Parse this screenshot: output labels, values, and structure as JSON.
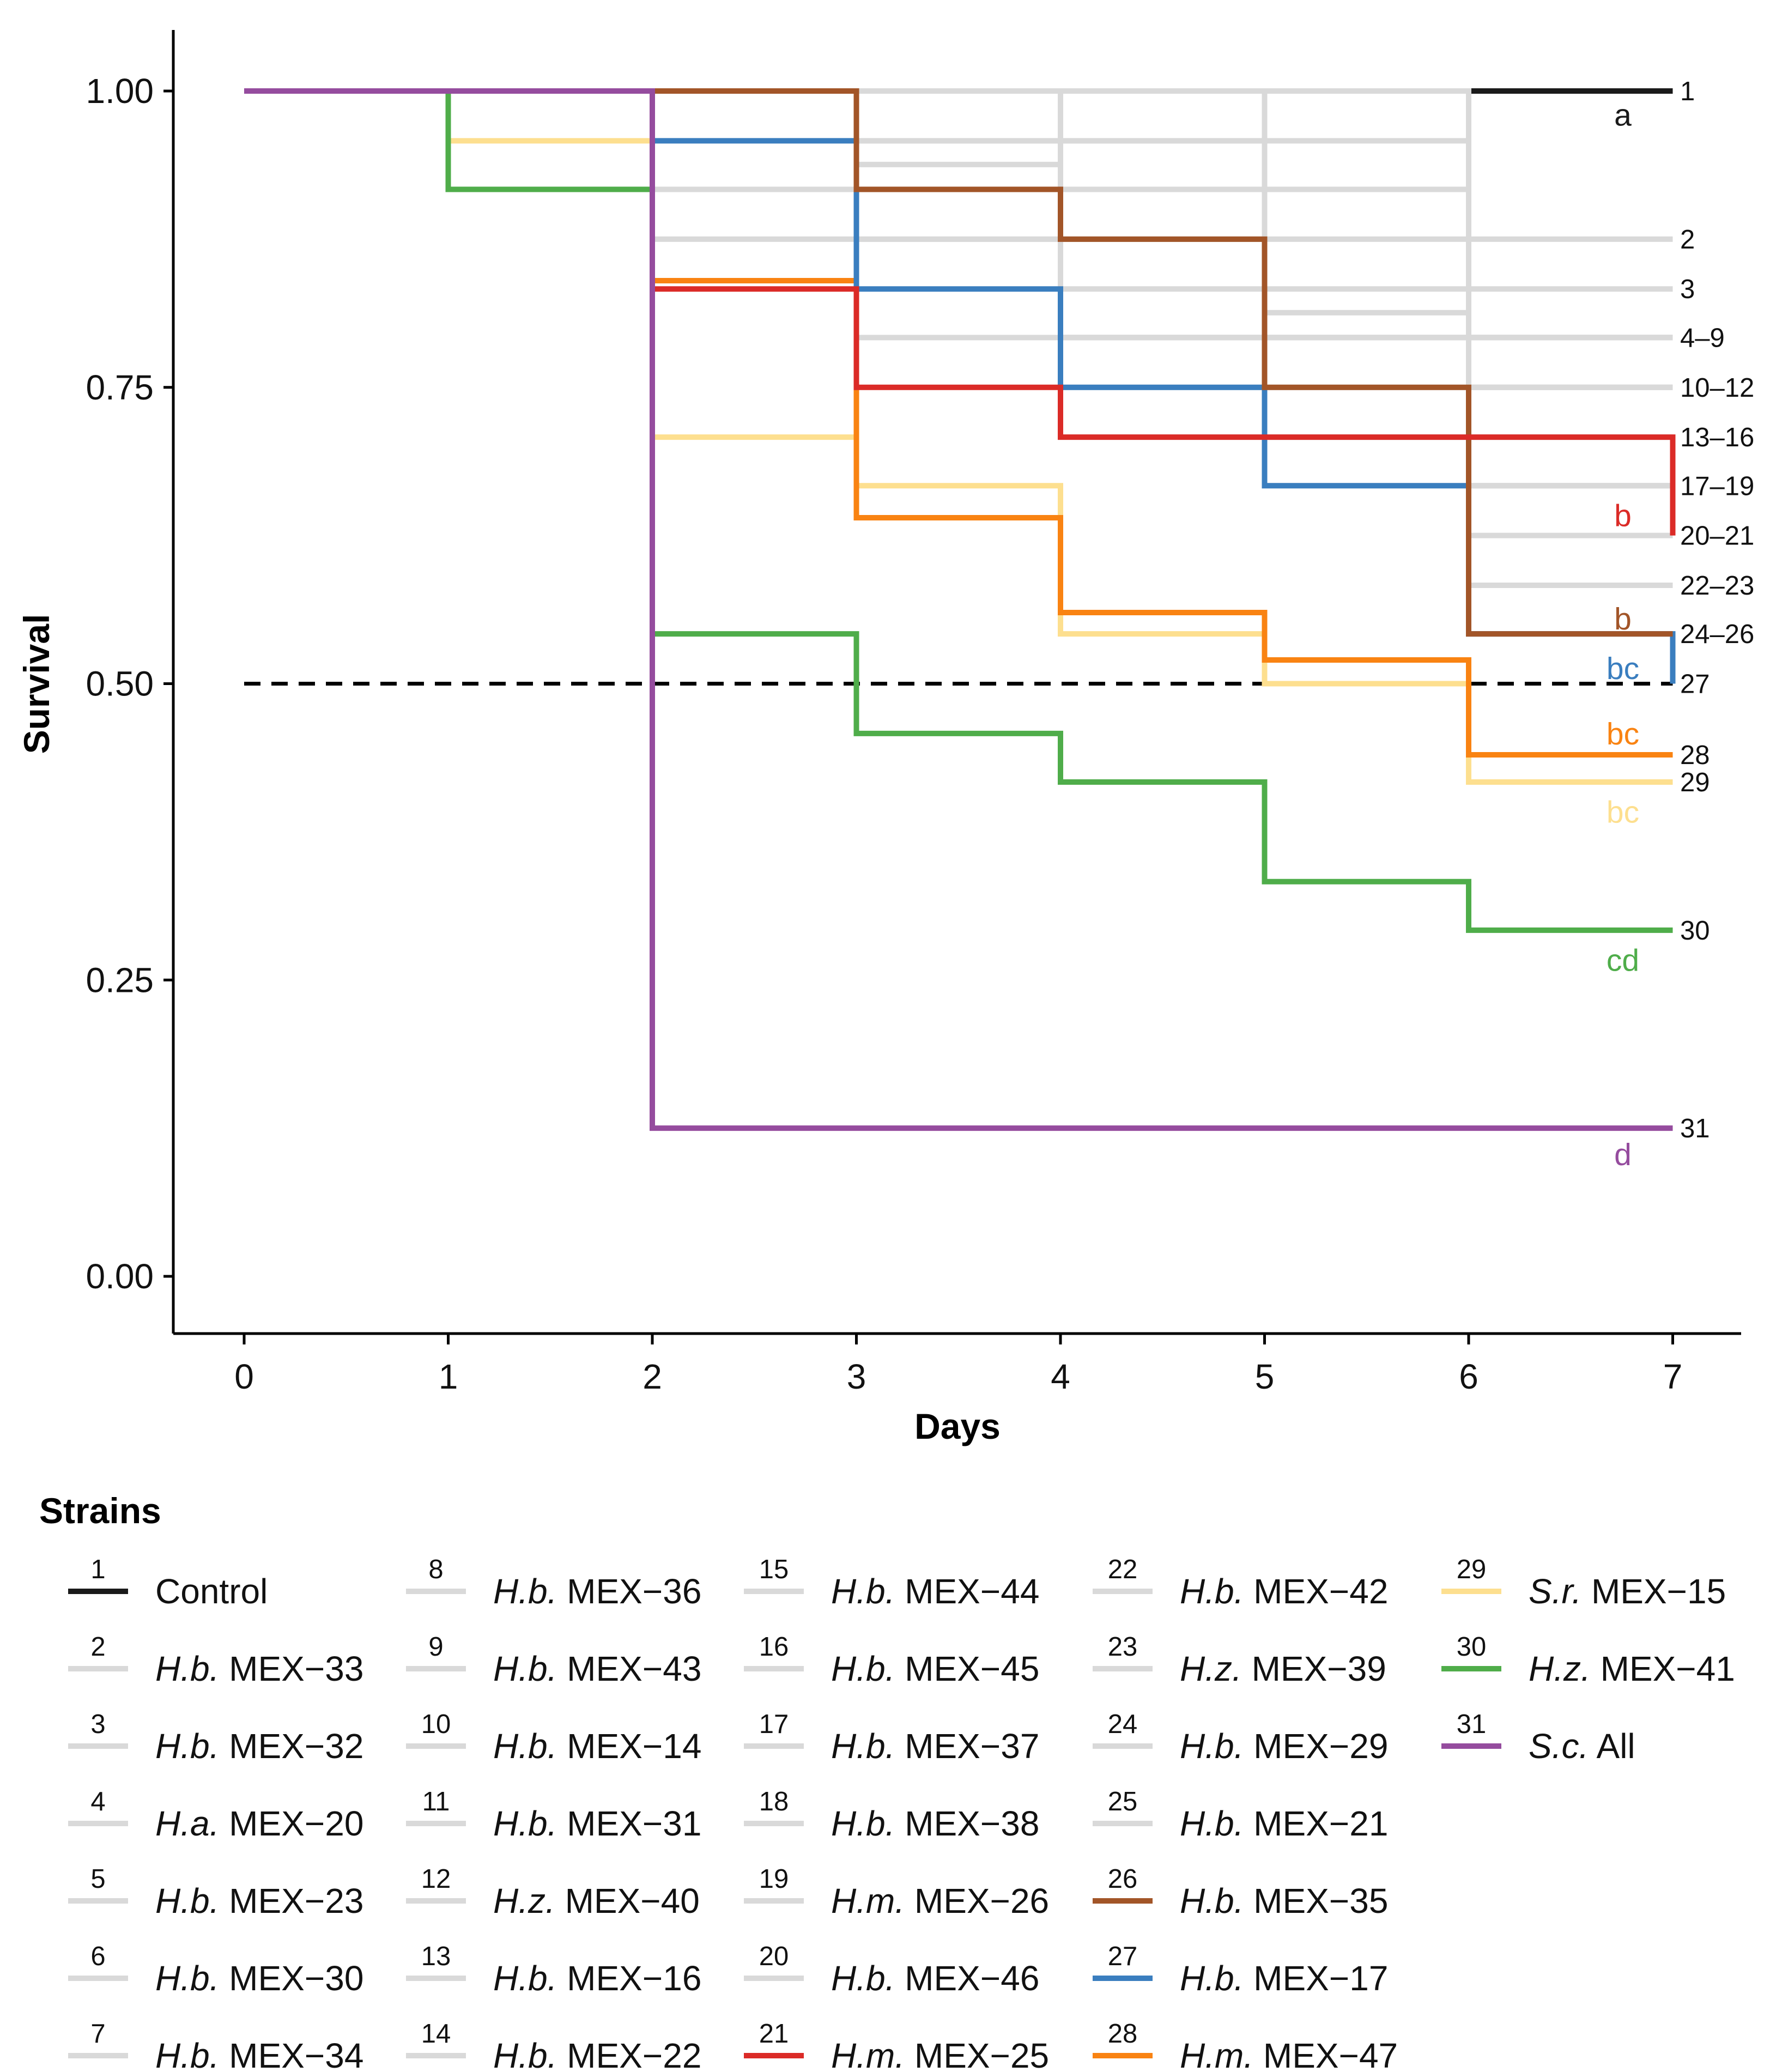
{
  "chart_data": {
    "type": "line",
    "title": "",
    "xlabel": "Days",
    "ylabel": "Survival",
    "xlim": [
      0,
      7
    ],
    "ylim": [
      0,
      1
    ],
    "x_ticks": [
      "0",
      "1",
      "2",
      "3",
      "4",
      "5",
      "6",
      "7"
    ],
    "y_ticks": [
      "0.00",
      "0.25",
      "0.50",
      "0.75",
      "1.00"
    ],
    "grid": false,
    "reference_line": {
      "y": 0.5,
      "style": "dashed"
    },
    "legend": {
      "title": "Strains",
      "placement": "bottom"
    },
    "series": [
      {
        "id": "1",
        "species": "",
        "strain": "Control",
        "color": "#1a1a1a",
        "steps": [
          [
            0,
            1.0
          ]
        ]
      },
      {
        "id": "2",
        "species": "H.b.",
        "strain": "MEX−33",
        "color": "#d9d9d9",
        "steps": [
          [
            0,
            1.0
          ],
          [
            6,
            0.875
          ]
        ]
      },
      {
        "id": "3",
        "species": "H.b.",
        "strain": "MEX−32",
        "color": "#d9d9d9",
        "steps": [
          [
            0,
            1.0
          ],
          [
            5,
            0.958
          ],
          [
            6,
            0.833
          ]
        ]
      },
      {
        "id": "4",
        "species": "H.a.",
        "strain": "MEX−20",
        "color": "#d9d9d9",
        "steps": [
          [
            0,
            1.0
          ],
          [
            2,
            0.875
          ],
          [
            6,
            0.792
          ]
        ]
      },
      {
        "id": "5",
        "species": "H.b.",
        "strain": "MEX−23",
        "color": "#d9d9d9",
        "steps": [
          [
            0,
            1.0
          ],
          [
            3,
            0.958
          ],
          [
            4,
            0.792
          ]
        ]
      },
      {
        "id": "6",
        "species": "H.b.",
        "strain": "MEX−30",
        "color": "#d9d9d9",
        "steps": [
          [
            0,
            1.0
          ],
          [
            3,
            0.938
          ],
          [
            4,
            0.792
          ]
        ]
      },
      {
        "id": "7",
        "species": "H.b.",
        "strain": "MEX−34",
        "color": "#d9d9d9",
        "steps": [
          [
            0,
            1.0
          ],
          [
            3,
            0.917
          ],
          [
            5,
            0.813
          ],
          [
            6,
            0.792
          ]
        ]
      },
      {
        "id": "8",
        "species": "H.b.",
        "strain": "MEX−36",
        "color": "#d9d9d9",
        "steps": [
          [
            0,
            1.0
          ],
          [
            2,
            0.917
          ],
          [
            3,
            0.792
          ]
        ]
      },
      {
        "id": "9",
        "species": "H.b.",
        "strain": "MEX−43",
        "color": "#d9d9d9",
        "steps": [
          [
            0,
            1.0
          ],
          [
            2,
            0.917
          ],
          [
            4,
            0.792
          ]
        ]
      },
      {
        "id": "10",
        "species": "H.b.",
        "strain": "MEX−14",
        "color": "#d9d9d9",
        "steps": [
          [
            0,
            1.0
          ],
          [
            2,
            0.917
          ],
          [
            6,
            0.75
          ]
        ]
      },
      {
        "id": "11",
        "species": "H.b.",
        "strain": "MEX−31",
        "color": "#d9d9d9",
        "steps": [
          [
            0,
            1.0
          ],
          [
            4,
            0.917
          ],
          [
            6,
            0.75
          ]
        ]
      },
      {
        "id": "12",
        "species": "H.z.",
        "strain": "MEX−40",
        "color": "#d9d9d9",
        "steps": [
          [
            0,
            1.0
          ],
          [
            4,
            0.958
          ],
          [
            5,
            0.75
          ]
        ]
      },
      {
        "id": "13",
        "species": "H.b.",
        "strain": "MEX−16",
        "color": "#d9d9d9",
        "steps": [
          [
            0,
            1.0
          ],
          [
            2,
            0.958
          ],
          [
            5,
            0.708
          ]
        ]
      },
      {
        "id": "14",
        "species": "H.b.",
        "strain": "MEX−22",
        "color": "#d9d9d9",
        "steps": [
          [
            0,
            1.0
          ],
          [
            3,
            0.875
          ],
          [
            5,
            0.708
          ]
        ]
      },
      {
        "id": "15",
        "species": "H.b.",
        "strain": "MEX−44",
        "color": "#d9d9d9",
        "steps": [
          [
            0,
            1.0
          ],
          [
            3,
            0.917
          ],
          [
            6,
            0.708
          ]
        ]
      },
      {
        "id": "16",
        "species": "H.b.",
        "strain": "MEX−45",
        "color": "#d9d9d9",
        "steps": [
          [
            0,
            1.0
          ],
          [
            4,
            0.833
          ],
          [
            6,
            0.708
          ]
        ]
      },
      {
        "id": "17",
        "species": "H.b.",
        "strain": "MEX−37",
        "color": "#d9d9d9",
        "steps": [
          [
            0,
            1.0
          ],
          [
            4,
            0.792
          ],
          [
            6,
            0.667
          ]
        ]
      },
      {
        "id": "18",
        "species": "H.b.",
        "strain": "MEX−38",
        "color": "#d9d9d9",
        "steps": [
          [
            0,
            1.0
          ],
          [
            4,
            0.75
          ],
          [
            5,
            0.667
          ]
        ]
      },
      {
        "id": "19",
        "species": "H.m.",
        "strain": "MEX−26",
        "color": "#d9d9d9",
        "steps": [
          [
            0,
            1.0
          ],
          [
            4,
            0.708
          ],
          [
            6,
            0.667
          ]
        ]
      },
      {
        "id": "20",
        "species": "H.b.",
        "strain": "MEX−46",
        "color": "#d9d9d9",
        "steps": [
          [
            0,
            1.0
          ],
          [
            6,
            0.625
          ]
        ]
      },
      {
        "id": "22",
        "species": "H.b.",
        "strain": "MEX−42",
        "color": "#d9d9d9",
        "steps": [
          [
            0,
            1.0
          ],
          [
            6,
            0.583
          ]
        ]
      },
      {
        "id": "23",
        "species": "H.z.",
        "strain": "MEX−39",
        "color": "#d9d9d9",
        "steps": [
          [
            0,
            1.0
          ],
          [
            6,
            0.583
          ]
        ]
      },
      {
        "id": "24",
        "species": "H.b.",
        "strain": "MEX−29",
        "color": "#d9d9d9",
        "steps": [
          [
            0,
            1.0
          ],
          [
            6,
            0.542
          ]
        ]
      },
      {
        "id": "25",
        "species": "H.b.",
        "strain": "MEX−21",
        "color": "#d9d9d9",
        "steps": [
          [
            0,
            1.0
          ],
          [
            6,
            0.542
          ]
        ]
      },
      {
        "id": "29",
        "species": "S.r.",
        "strain": "MEX−15",
        "color": "#fddf8f",
        "steps": [
          [
            0,
            1.0
          ],
          [
            1,
            0.958
          ],
          [
            2,
            0.708
          ],
          [
            3,
            0.667
          ],
          [
            4,
            0.542
          ],
          [
            5,
            0.5
          ],
          [
            6,
            0.417
          ]
        ]
      },
      {
        "id": "28",
        "species": "H.m.",
        "strain": "MEX−47",
        "color": "#f98312",
        "steps": [
          [
            0,
            1.0
          ],
          [
            2,
            0.84
          ],
          [
            3,
            0.64
          ],
          [
            4,
            0.56
          ],
          [
            5,
            0.52
          ],
          [
            6,
            0.44
          ]
        ]
      },
      {
        "id": "27",
        "species": "H.b.",
        "strain": "MEX−17",
        "color": "#3a7ebf",
        "steps": [
          [
            0,
            1.0
          ],
          [
            2,
            0.958
          ],
          [
            3,
            0.833
          ],
          [
            4,
            0.75
          ],
          [
            5,
            0.667
          ],
          [
            6,
            0.542
          ],
          [
            7,
            0.5
          ]
        ]
      },
      {
        "id": "26",
        "species": "H.b.",
        "strain": "MEX−35",
        "color": "#a25528",
        "steps": [
          [
            0,
            1.0
          ],
          [
            3,
            0.917
          ],
          [
            4,
            0.875
          ],
          [
            5,
            0.75
          ],
          [
            6,
            0.542
          ]
        ]
      },
      {
        "id": "21",
        "species": "H.m.",
        "strain": "MEX−25",
        "color": "#db2b27",
        "steps": [
          [
            0,
            1.0
          ],
          [
            2,
            0.833
          ],
          [
            3,
            0.75
          ],
          [
            4,
            0.708
          ],
          [
            7,
            0.625
          ]
        ]
      },
      {
        "id": "30",
        "species": "H.z.",
        "strain": "MEX−41",
        "color": "#4fad4a",
        "steps": [
          [
            0,
            1.0
          ],
          [
            1,
            0.917
          ],
          [
            2,
            0.542
          ],
          [
            3,
            0.458
          ],
          [
            4,
            0.417
          ],
          [
            5,
            0.333
          ],
          [
            6,
            0.292
          ]
        ]
      },
      {
        "id": "31",
        "species": "S.c.",
        "strain": "All",
        "color": "#954c9e",
        "steps": [
          [
            0,
            1.0
          ],
          [
            2,
            0.125
          ]
        ]
      }
    ],
    "end_labels": [
      {
        "text": "1",
        "y": 1.0
      },
      {
        "text": "2",
        "y": 0.875
      },
      {
        "text": "3",
        "y": 0.833
      },
      {
        "text": "4–9",
        "y": 0.792
      },
      {
        "text": "10–12",
        "y": 0.75
      },
      {
        "text": "13–16",
        "y": 0.708
      },
      {
        "text": "17–19",
        "y": 0.667
      },
      {
        "text": "20–21",
        "y": 0.625
      },
      {
        "text": "22–23",
        "y": 0.583
      },
      {
        "text": "24–26",
        "y": 0.542
      },
      {
        "text": "27",
        "y": 0.5
      },
      {
        "text": "28",
        "y": 0.44
      },
      {
        "text": "29",
        "y": 0.417
      },
      {
        "text": "30",
        "y": 0.292
      },
      {
        "text": "31",
        "y": 0.125
      }
    ],
    "significance_letters": [
      {
        "text": "a",
        "y": 0.98,
        "color": "#1a1a1a"
      },
      {
        "text": "b",
        "y": 0.642,
        "color": "#db2b27"
      },
      {
        "text": "b",
        "y": 0.555,
        "color": "#a25528"
      },
      {
        "text": "bc",
        "y": 0.513,
        "color": "#3a7ebf"
      },
      {
        "text": "bc",
        "y": 0.458,
        "color": "#f98312"
      },
      {
        "text": "bc",
        "y": 0.392,
        "color": "#fddf8f"
      },
      {
        "text": "cd",
        "y": 0.267,
        "color": "#4fad4a"
      },
      {
        "text": "d",
        "y": 0.103,
        "color": "#954c9e"
      }
    ],
    "legend_columns": [
      [
        "1",
        "2",
        "3",
        "4",
        "5",
        "6",
        "7"
      ],
      [
        "8",
        "9",
        "10",
        "11",
        "12",
        "13",
        "14"
      ],
      [
        "15",
        "16",
        "17",
        "18",
        "19",
        "20",
        "21"
      ],
      [
        "22",
        "23",
        "24",
        "25",
        "26",
        "27",
        "28"
      ],
      [
        "29",
        "30",
        "31"
      ]
    ]
  }
}
